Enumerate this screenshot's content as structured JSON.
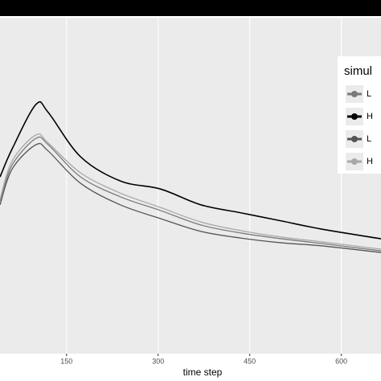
{
  "chart_data": {
    "type": "line",
    "x_label": "time step",
    "legend_title": "simul",
    "x": [
      41,
      61,
      100,
      120,
      173,
      238,
      304,
      370,
      436,
      502,
      567,
      665
    ],
    "series": [
      {
        "name": "L",
        "color": "#7a7a7a",
        "values": [
          45.5,
          56.2,
          64.1,
          62.2,
          52.6,
          46.7,
          42.6,
          38.3,
          35.9,
          34.2,
          32.8,
          30.6
        ]
      },
      {
        "name": "H",
        "color": "#000000",
        "values": [
          52.6,
          61,
          74.2,
          71.8,
          58.6,
          51.4,
          49,
          44.3,
          41.9,
          39.5,
          37.1,
          34.2
        ]
      },
      {
        "name": "L",
        "color": "#555555",
        "values": [
          44.3,
          55,
          62.2,
          60.3,
          50.7,
          44.3,
          40.2,
          36.4,
          34.4,
          33,
          32.1,
          30.1
        ]
      },
      {
        "name": "H",
        "color": "#a8a8a8",
        "values": [
          45.9,
          57.4,
          65.1,
          62.7,
          53.8,
          47.8,
          43.5,
          39.2,
          36.6,
          34.7,
          33.3,
          31.1
        ]
      }
    ],
    "xlim": [
      41,
      665
    ],
    "xticks": [
      150,
      300,
      450,
      600
    ],
    "ylim": [
      0,
      100
    ],
    "grid": true,
    "legend": "right"
  }
}
